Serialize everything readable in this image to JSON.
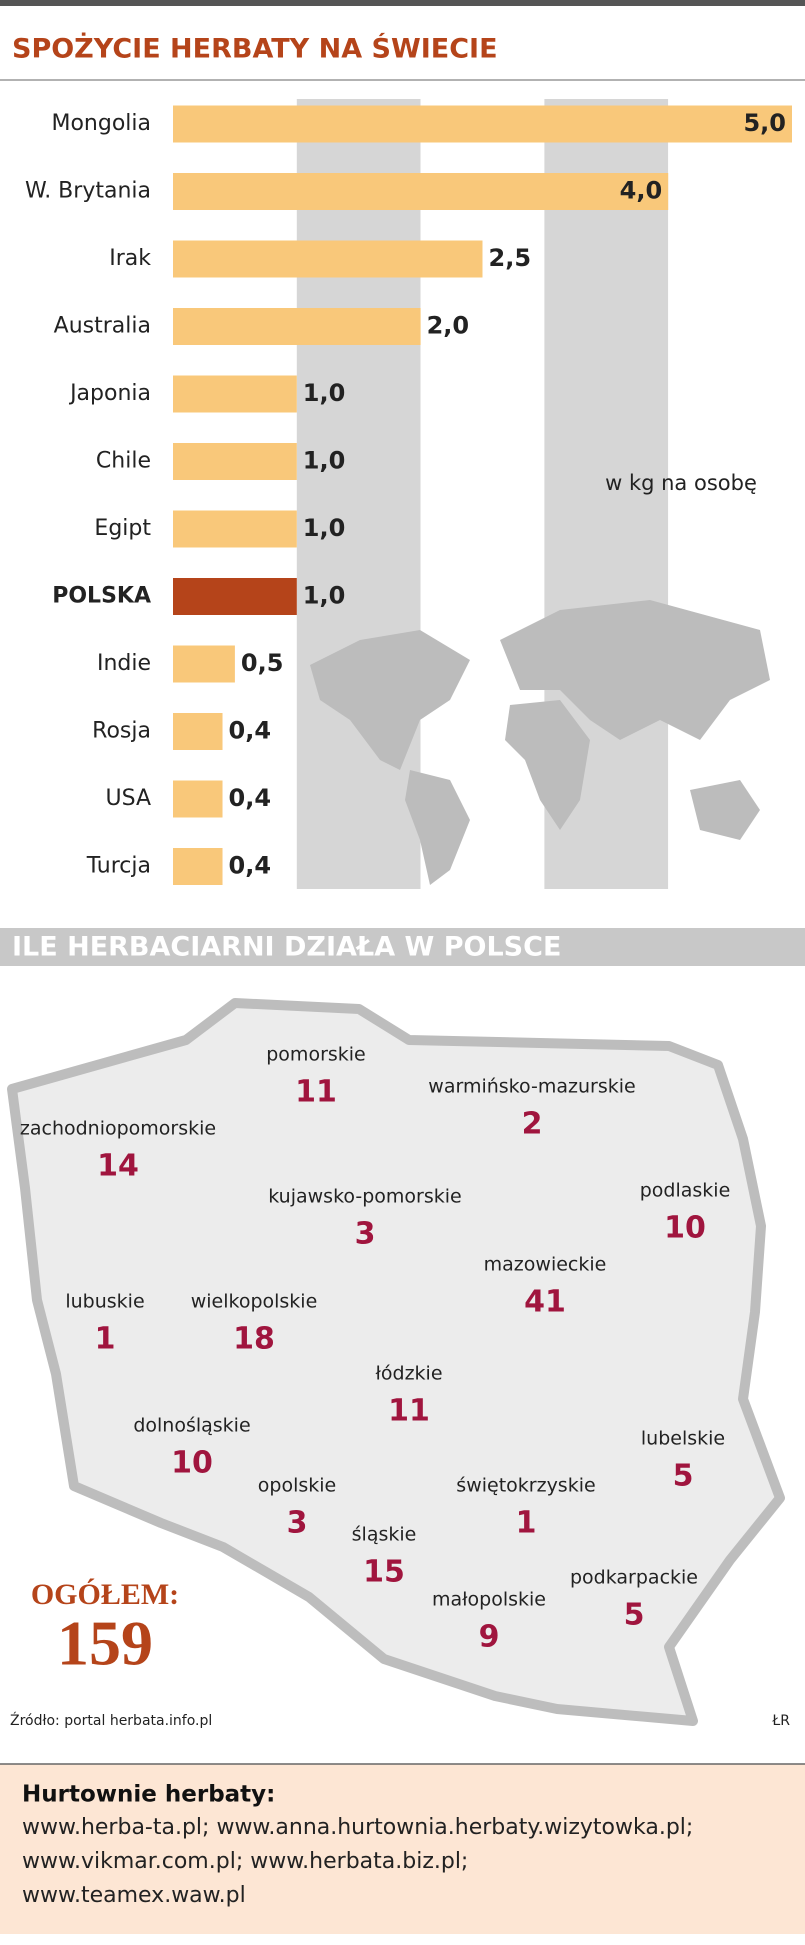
{
  "chart_data": {
    "type": "bar",
    "orientation": "horizontal",
    "title": "SPOŻYCIE HERBATY NA ŚWIECIE",
    "subtitle": "w kg na osobę",
    "categories": [
      "Mongolia",
      "W. Brytania",
      "Irak",
      "Australia",
      "Japonia",
      "Chile",
      "Egipt",
      "POLSKA",
      "Indie",
      "Rosja",
      "USA",
      "Turcja"
    ],
    "values": [
      5.0,
      4.0,
      2.5,
      2.0,
      1.0,
      1.0,
      1.0,
      1.0,
      0.5,
      0.4,
      0.4,
      0.4
    ],
    "value_labels": [
      "5,0",
      "4,0",
      "2,5",
      "2,0",
      "1,0",
      "1,0",
      "1,0",
      "1,0",
      "0,5",
      "0,4",
      "0,4",
      "0,4"
    ],
    "color": "#f9c87a",
    "highlight": {
      "index": 7,
      "color": "#b5441a"
    },
    "xlim": [
      0,
      5
    ]
  },
  "map": {
    "title": "ILE HERBACIARNI DZIAŁA W POLSCE",
    "total_label": "OGÓŁEM:",
    "total": 159,
    "regions": [
      {
        "name": "pomorskie",
        "value": 11
      },
      {
        "name": "warmińsko-mazurskie",
        "value": 2
      },
      {
        "name": "zachodniopomorskie",
        "value": 14
      },
      {
        "name": "kujawsko-pomorskie",
        "value": 3
      },
      {
        "name": "podlaskie",
        "value": 10
      },
      {
        "name": "mazowieckie",
        "value": 41
      },
      {
        "name": "lubuskie",
        "value": 1
      },
      {
        "name": "wielkopolskie",
        "value": 18
      },
      {
        "name": "łódzkie",
        "value": 11
      },
      {
        "name": "dolnośląskie",
        "value": 10
      },
      {
        "name": "lubelskie",
        "value": 5
      },
      {
        "name": "opolskie",
        "value": 3
      },
      {
        "name": "świętokrzyskie",
        "value": 1
      },
      {
        "name": "śląskie",
        "value": 15
      },
      {
        "name": "podkarpackie",
        "value": 5
      },
      {
        "name": "małopolskie",
        "value": 9
      }
    ],
    "source": "Źródło: portal herbata.info.pl",
    "author": "ŁR"
  },
  "wholesalers": {
    "title": "Hurtownie herbaty:",
    "lines": [
      "www.herba-ta.pl; www.anna.hurtownia.herbaty.wizytowka.pl;",
      "www.vikmar.com.pl; www.herbata.biz.pl;",
      "www.teamex.waw.pl"
    ]
  }
}
